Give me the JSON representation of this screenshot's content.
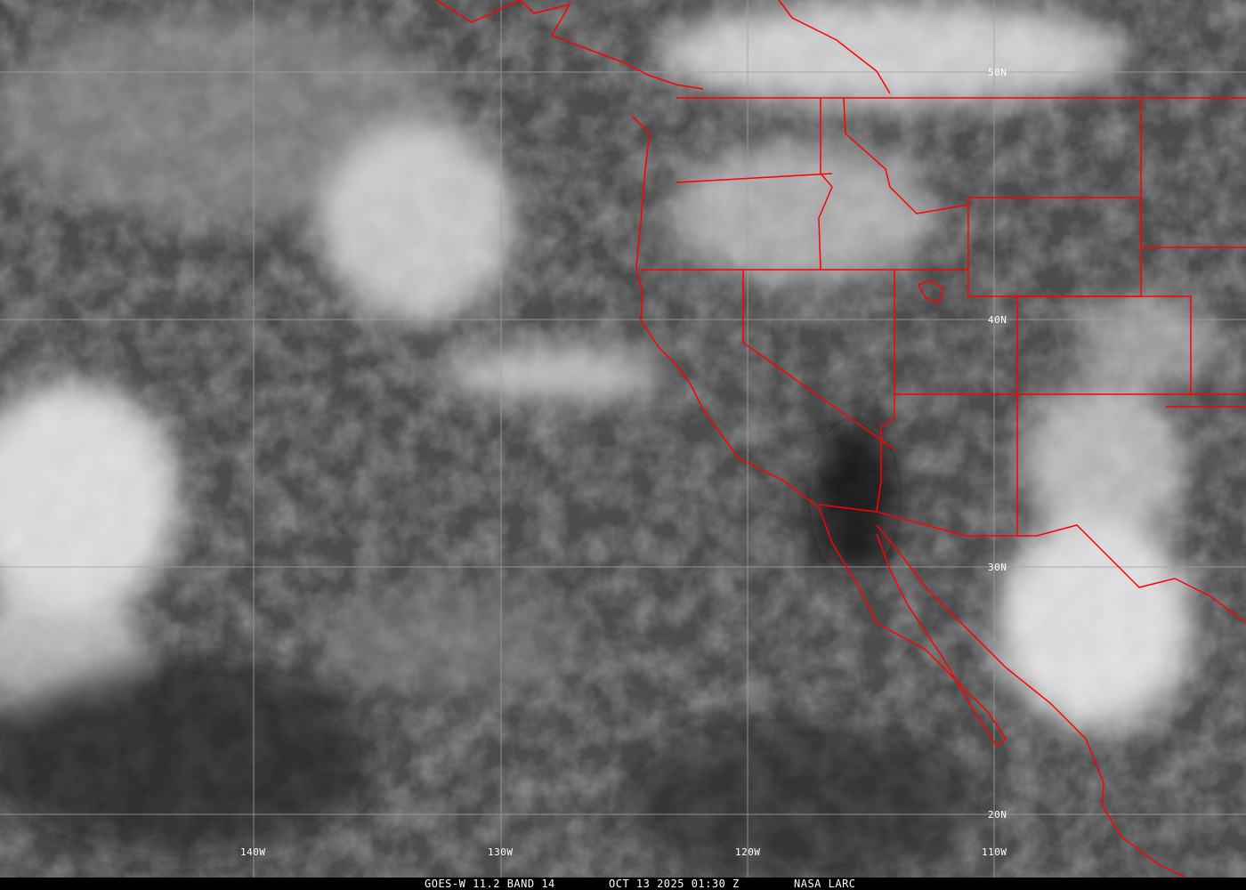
{
  "image": {
    "type": "satellite infrared image",
    "colors": {
      "boundaries": "#ff0000",
      "grid": "#a0a0a0",
      "label": "#ffffff"
    }
  },
  "grid": {
    "latitude_labels": [
      "50N",
      "40N",
      "30N",
      "20N"
    ],
    "longitude_labels": [
      "140W",
      "130W",
      "120W",
      "110W"
    ]
  },
  "caption": {
    "product": "GOES-W 11.2 BAND 14",
    "datetime": "OCT 13 2025 01:30 Z",
    "source": "NASA LARC"
  }
}
